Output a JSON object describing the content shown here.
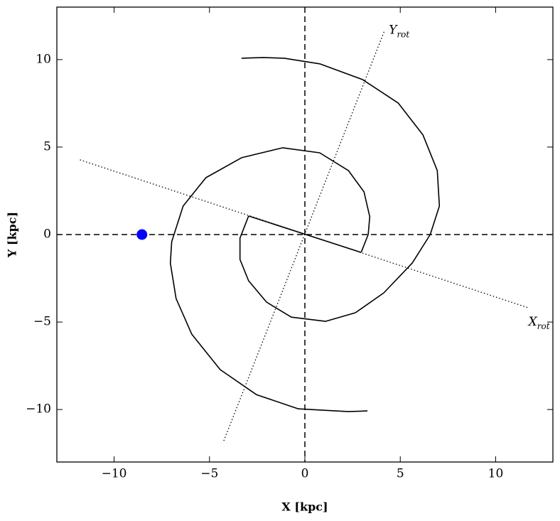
{
  "chart_data": {
    "type": "line",
    "xlabel": "X [kpc]",
    "ylabel": "Y [kpc]",
    "xlim": [
      -13,
      13
    ],
    "ylim": [
      -13,
      13
    ],
    "xticks": [
      {
        "value": -10,
        "label": "−10"
      },
      {
        "value": -5,
        "label": "−5"
      },
      0,
      5,
      10
    ],
    "yticks": [
      {
        "value": -10,
        "label": "−10"
      },
      {
        "value": -5,
        "label": "−5"
      },
      0,
      5,
      10
    ],
    "hlines": [
      0
    ],
    "vlines": [
      0
    ],
    "series": [
      {
        "type": "line",
        "color": "#000000",
        "style": "solid",
        "x": [
          -2.95,
          2.95
        ],
        "y": [
          1.06,
          -1.02
        ]
      },
      {
        "type": "line",
        "color": "#000000",
        "style": "solid",
        "x": [
          2.95,
          3.32,
          3.4,
          3.1,
          2.28,
          0.78,
          -1.16,
          -3.32,
          -5.19,
          -6.38,
          -6.98,
          -7.05,
          -6.75,
          -5.93,
          -4.44,
          -2.54,
          -0.34,
          2.28,
          3.28
        ],
        "y": [
          -1.02,
          0,
          1.02,
          2.44,
          3.66,
          4.67,
          4.96,
          4.39,
          3.25,
          1.63,
          -0.41,
          -1.63,
          -3.66,
          -5.69,
          -7.72,
          -9.15,
          -9.96,
          -10.12,
          -10.08
        ]
      },
      {
        "type": "line",
        "color": "#000000",
        "style": "solid",
        "x": [
          -2.95,
          -3.4,
          -3.4,
          -2.95,
          -2.01,
          -0.71,
          1.08,
          2.65,
          4.14,
          5.63,
          6.57,
          7.05,
          6.94,
          6.19,
          4.89,
          3.02,
          0.78,
          -1.08,
          -2.2,
          -3.32
        ],
        "y": [
          1.06,
          -0.2,
          -1.42,
          -2.64,
          -3.86,
          -4.72,
          -4.96,
          -4.47,
          -3.33,
          -1.63,
          0,
          1.63,
          3.66,
          5.69,
          7.52,
          8.86,
          9.76,
          10.08,
          10.12,
          10.08
        ]
      },
      {
        "type": "line",
        "color": "#000000",
        "style": "dotted",
        "x": [
          -11.79,
          11.72
        ],
        "y": [
          4.27,
          -4.19
        ],
        "label": {
          "text": "X",
          "sub": "rot"
        },
        "label_side": "below"
      },
      {
        "type": "line",
        "color": "#000000",
        "style": "dotted",
        "x": [
          -4.25,
          4.18
        ],
        "y": [
          -11.79,
          11.67
        ],
        "label": {
          "text": "Y",
          "sub": "rot"
        },
        "label_side": "right"
      },
      {
        "type": "scatter",
        "color": "#0000ff",
        "x": [
          -8.54
        ],
        "y": [
          0
        ]
      }
    ]
  }
}
